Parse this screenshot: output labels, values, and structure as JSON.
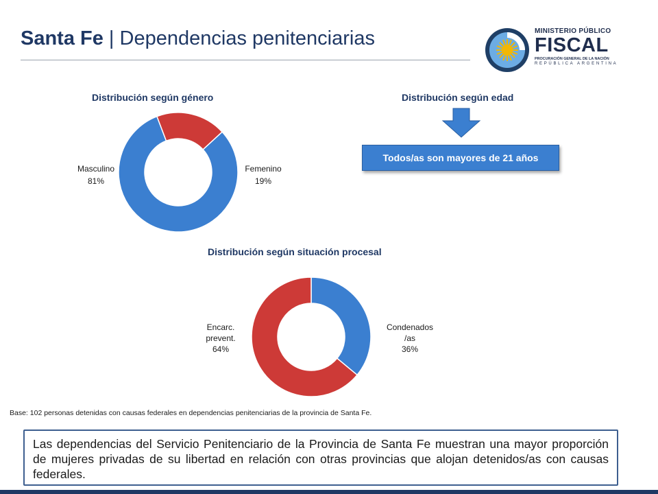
{
  "header": {
    "title_bold": "Santa Fe",
    "title_separator": " | ",
    "title_rest": "Dependencias penitenciarias"
  },
  "logo": {
    "line1": "MINISTERIO PÚBLICO",
    "line2": "FISCAL",
    "line3": "PROCURACIÓN GENERAL DE LA NACIÓN",
    "line4": "REPÚBLICA ARGENTINA"
  },
  "age": {
    "title": "Distribución según edad",
    "box_text": "Todos/as son mayores de 21 años",
    "arrow_color": "#3b7fd0"
  },
  "chart_data": [
    {
      "type": "pie",
      "variant": "donut",
      "title": "Distribución según género",
      "slices": [
        {
          "label": "Masculino",
          "value": 81,
          "value_label": "81%",
          "color": "#3b7fd0"
        },
        {
          "label": "Femenino",
          "value": 19,
          "value_label": "19%",
          "color": "#cd3a37"
        }
      ]
    },
    {
      "type": "pie",
      "variant": "donut",
      "title": "Distribución según situación procesal",
      "slices": [
        {
          "label": "Condenados /as",
          "label_lines": [
            "Condenados",
            "/as"
          ],
          "value": 36,
          "value_label": "36%",
          "color": "#3b7fd0"
        },
        {
          "label": "Encarc. prevent.",
          "label_lines": [
            "Encarc.",
            "prevent."
          ],
          "value": 64,
          "value_label": "64%",
          "color": "#cd3a37"
        }
      ]
    }
  ],
  "footnote": "Base: 102 personas detenidas con causas federales en dependencias penitenciarias de la provincia de Santa Fe.",
  "summary": "Las dependencias del Servicio Penitenciario de la Provincia de Santa Fe muestran una mayor proporción de mujeres privadas de su libertad en relación con otras provincias que alojan detenidos/as con causas federales."
}
